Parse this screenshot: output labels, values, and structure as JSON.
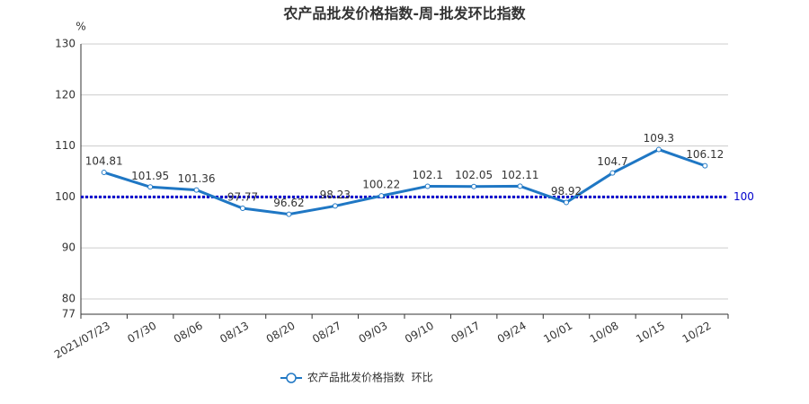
{
  "chart_data": {
    "type": "line",
    "title": "农产品批发价格指数-周-批发环比指数",
    "y_unit": "%",
    "categories": [
      "2021/07/23",
      "07/30",
      "08/06",
      "08/13",
      "08/20",
      "08/27",
      "09/03",
      "09/10",
      "09/17",
      "09/24",
      "10/01",
      "10/08",
      "10/15",
      "10/22"
    ],
    "series": [
      {
        "name": "农产品批发价格指数  环比",
        "color": "#1f77c4",
        "values": [
          104.81,
          101.95,
          101.36,
          97.77,
          96.62,
          98.23,
          100.22,
          102.1,
          102.05,
          102.11,
          98.92,
          104.7,
          109.3,
          106.12
        ]
      }
    ],
    "ylim": [
      77,
      130
    ],
    "yticks": [
      77,
      80,
      90,
      100,
      110,
      120,
      130
    ],
    "grid": true,
    "reference_line": 100,
    "reference_color": "#0000cc",
    "legend": "bottom"
  }
}
